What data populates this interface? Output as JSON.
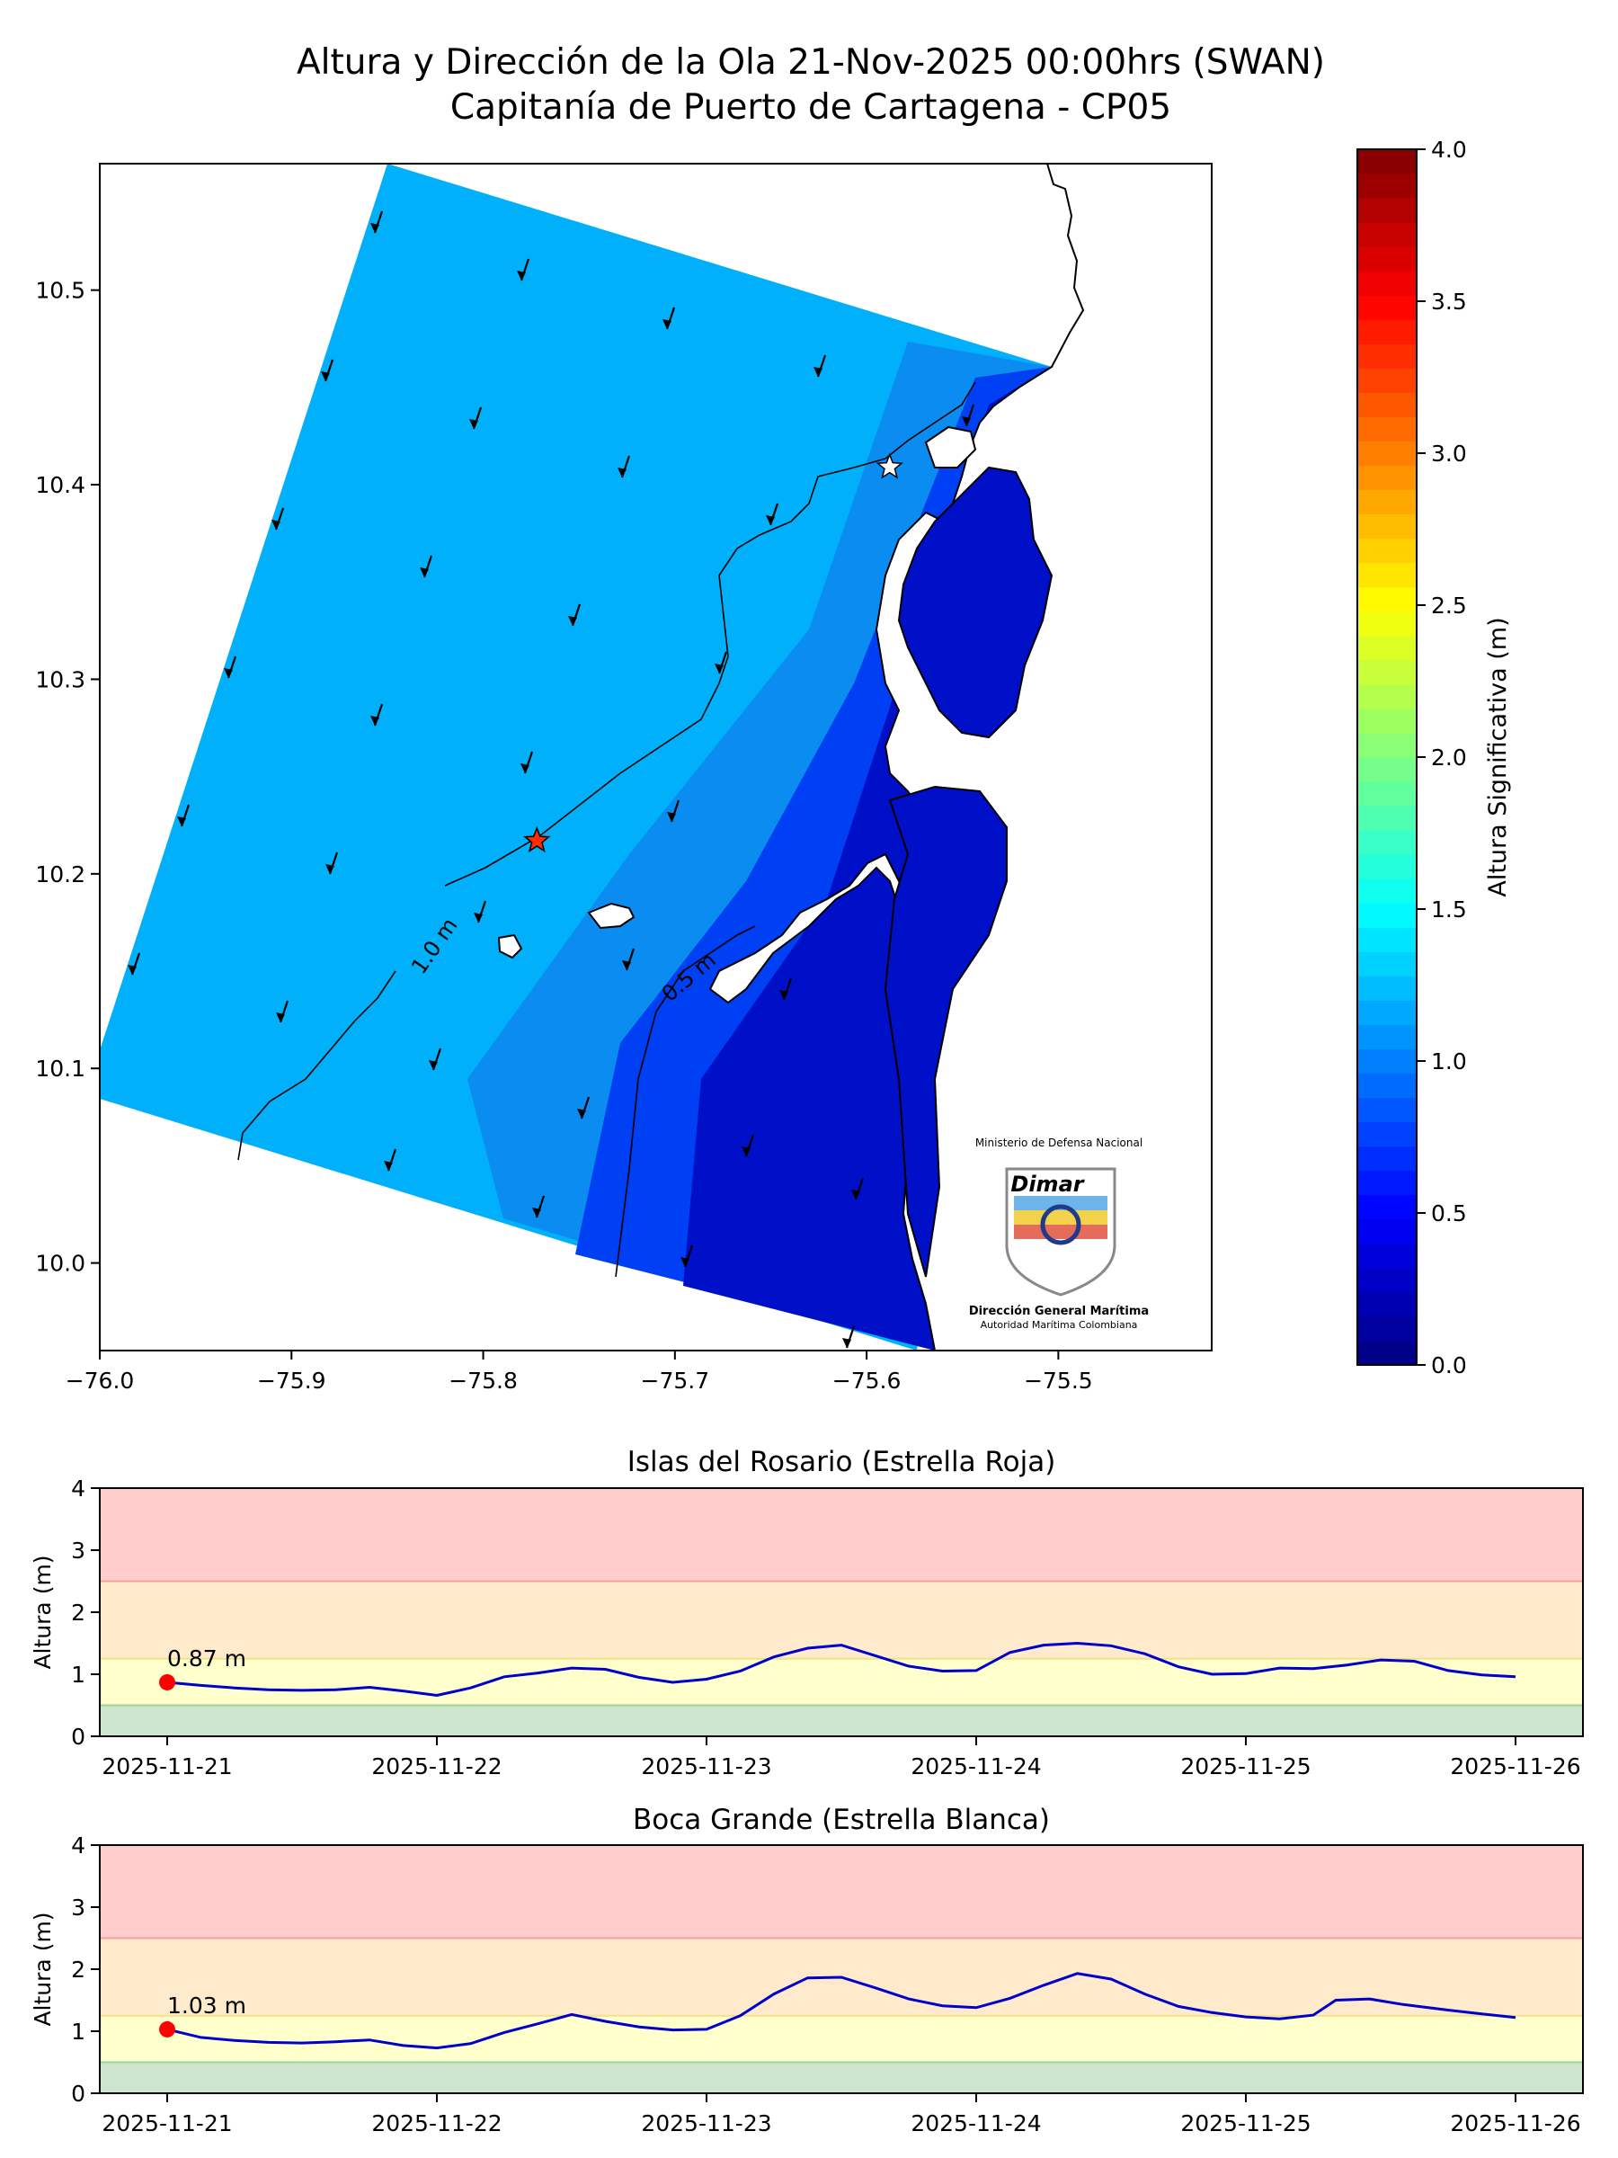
{
  "chart_data": [
    {
      "type": "heatmap",
      "title": "Altura y Dirección de la Ola 21-Nov-2025 00:00hrs (SWAN)",
      "subtitle": "Capitanía de Puerto de Cartagena - CP05",
      "xlim": [
        -76.0,
        -75.42
      ],
      "ylim": [
        9.955,
        10.565
      ],
      "x_ticks": [
        "−76.0",
        "−75.9",
        "−75.8",
        "−75.7",
        "−75.6",
        "−75.5"
      ],
      "x_tick_values": [
        -76.0,
        -75.9,
        -75.8,
        -75.7,
        -75.6,
        -75.5
      ],
      "y_ticks": [
        "10.0",
        "10.1",
        "10.2",
        "10.3",
        "10.4",
        "10.5"
      ],
      "y_tick_values": [
        10.0,
        10.1,
        10.2,
        10.3,
        10.4,
        10.5
      ],
      "contour_labels": [
        "1.0 m",
        "0.5 m"
      ],
      "markers": [
        {
          "name": "Islas del Rosario",
          "lon": -75.772,
          "lat": 10.217,
          "color": "#ff2a00"
        },
        {
          "name": "Boca Grande",
          "lon": -75.588,
          "lat": 10.409,
          "color": "#ffffff"
        }
      ],
      "colorbar": {
        "label": "Altura Significativa (m)",
        "range": [
          0.0,
          4.0
        ],
        "ticks": [
          "0.0",
          "0.5",
          "1.0",
          "1.5",
          "2.0",
          "2.5",
          "3.0",
          "3.5",
          "4.0"
        ],
        "tick_values": [
          0.0,
          0.5,
          1.0,
          1.5,
          2.0,
          2.5,
          3.0,
          3.5,
          4.0
        ],
        "colormap": "jet"
      },
      "logo": {
        "top_text": "Ministerio de Defensa Nacional",
        "brand": "Dimar",
        "bottom_text_1": "Dirección General Marítima",
        "bottom_text_2": "Autoridad Marítima Colombiana"
      }
    },
    {
      "type": "line",
      "title": "Islas del Rosario (Estrella Roja)",
      "ylabel": "Altura (m)",
      "ylim": [
        0,
        4
      ],
      "y_ticks": [
        "0",
        "1",
        "2",
        "3",
        "4"
      ],
      "x_ticks": [
        "2025-11-21",
        "2025-11-22",
        "2025-11-23",
        "2025-11-24",
        "2025-11-25",
        "2025-11-26"
      ],
      "x_hours": [
        0,
        6,
        12,
        18,
        24,
        30,
        36,
        42,
        48,
        54,
        60,
        66,
        72,
        78,
        84,
        90,
        96,
        102,
        108,
        114,
        120
      ],
      "bands": [
        {
          "from": 0.0,
          "to": 0.5,
          "color": "#cce5cc"
        },
        {
          "from": 0.5,
          "to": 1.25,
          "color": "#ffffcc"
        },
        {
          "from": 1.25,
          "to": 2.5,
          "color": "#ffebcc"
        },
        {
          "from": 2.5,
          "to": 4.0,
          "color": "#ffcccc"
        }
      ],
      "series": [
        {
          "color": "#0000cc",
          "points": [
            [
              0,
              0.87
            ],
            [
              3,
              0.82
            ],
            [
              6,
              0.78
            ],
            [
              9,
              0.75
            ],
            [
              12,
              0.74
            ],
            [
              15,
              0.75
            ],
            [
              18,
              0.79
            ],
            [
              21,
              0.73
            ],
            [
              24,
              0.66
            ],
            [
              27,
              0.78
            ],
            [
              30,
              0.96
            ],
            [
              33,
              1.02
            ],
            [
              36,
              1.1
            ],
            [
              39,
              1.08
            ],
            [
              42,
              0.95
            ],
            [
              45,
              0.87
            ],
            [
              48,
              0.92
            ],
            [
              51,
              1.05
            ],
            [
              54,
              1.28
            ],
            [
              57,
              1.42
            ],
            [
              60,
              1.47
            ],
            [
              63,
              1.3
            ],
            [
              66,
              1.13
            ],
            [
              69,
              1.05
            ],
            [
              72,
              1.06
            ],
            [
              75,
              1.35
            ],
            [
              78,
              1.47
            ],
            [
              81,
              1.5
            ],
            [
              84,
              1.46
            ],
            [
              87,
              1.33
            ],
            [
              90,
              1.12
            ],
            [
              93,
              1.0
            ],
            [
              96,
              1.01
            ],
            [
              99,
              1.1
            ],
            [
              102,
              1.09
            ],
            [
              105,
              1.15
            ],
            [
              108,
              1.23
            ],
            [
              111,
              1.21
            ],
            [
              114,
              1.06
            ],
            [
              117,
              0.99
            ],
            [
              120,
              0.96
            ]
          ]
        }
      ],
      "current": {
        "x": 0,
        "y": 0.87,
        "label": "0.87 m",
        "color": "#ff0000"
      }
    },
    {
      "type": "line",
      "title": "Boca Grande (Estrella Blanca)",
      "ylabel": "Altura (m)",
      "ylim": [
        0,
        4
      ],
      "y_ticks": [
        "0",
        "1",
        "2",
        "3",
        "4"
      ],
      "x_ticks": [
        "2025-11-21",
        "2025-11-22",
        "2025-11-23",
        "2025-11-24",
        "2025-11-25",
        "2025-11-26"
      ],
      "x_hours": [
        0,
        6,
        12,
        18,
        24,
        30,
        36,
        42,
        48,
        54,
        60,
        66,
        72,
        78,
        84,
        90,
        96,
        102,
        108,
        114,
        120
      ],
      "bands": [
        {
          "from": 0.0,
          "to": 0.5,
          "color": "#cce5cc"
        },
        {
          "from": 0.5,
          "to": 1.25,
          "color": "#ffffcc"
        },
        {
          "from": 1.25,
          "to": 2.5,
          "color": "#ffebcc"
        },
        {
          "from": 2.5,
          "to": 4.0,
          "color": "#ffcccc"
        }
      ],
      "series": [
        {
          "color": "#0000cc",
          "points": [
            [
              0,
              1.03
            ],
            [
              3,
              0.9
            ],
            [
              6,
              0.85
            ],
            [
              9,
              0.82
            ],
            [
              12,
              0.81
            ],
            [
              15,
              0.83
            ],
            [
              18,
              0.86
            ],
            [
              21,
              0.77
            ],
            [
              24,
              0.73
            ],
            [
              27,
              0.8
            ],
            [
              30,
              0.98
            ],
            [
              33,
              1.12
            ],
            [
              36,
              1.27
            ],
            [
              39,
              1.16
            ],
            [
              42,
              1.07
            ],
            [
              45,
              1.02
            ],
            [
              48,
              1.03
            ],
            [
              51,
              1.25
            ],
            [
              54,
              1.6
            ],
            [
              57,
              1.86
            ],
            [
              60,
              1.87
            ],
            [
              63,
              1.7
            ],
            [
              66,
              1.52
            ],
            [
              69,
              1.41
            ],
            [
              72,
              1.38
            ],
            [
              75,
              1.53
            ],
            [
              78,
              1.74
            ],
            [
              81,
              1.93
            ],
            [
              84,
              1.84
            ],
            [
              87,
              1.6
            ],
            [
              90,
              1.4
            ],
            [
              93,
              1.3
            ],
            [
              96,
              1.23
            ],
            [
              99,
              1.2
            ],
            [
              102,
              1.26
            ],
            [
              104,
              1.5
            ],
            [
              107,
              1.52
            ],
            [
              110,
              1.43
            ],
            [
              114,
              1.34
            ],
            [
              117,
              1.28
            ],
            [
              120,
              1.22
            ]
          ]
        }
      ],
      "current": {
        "x": 0,
        "y": 1.03,
        "label": "1.03 m",
        "color": "#ff0000"
      }
    }
  ]
}
